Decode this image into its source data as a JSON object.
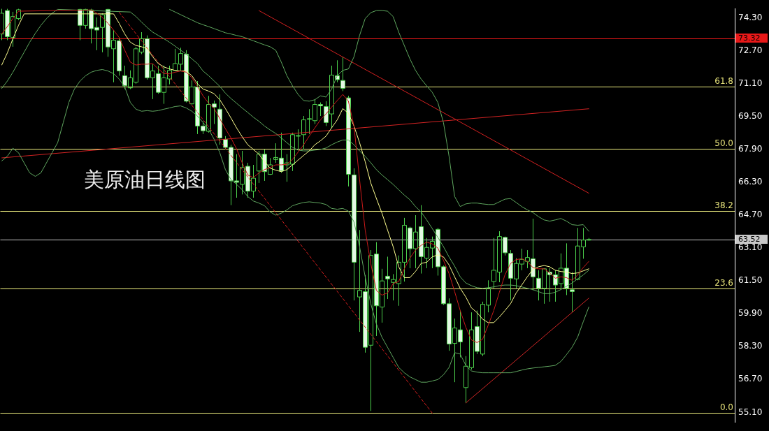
{
  "chart_data": {
    "type": "candlestick",
    "title": "美原油日线图",
    "categories": [
      null,
      null,
      null,
      null,
      null,
      null,
      null,
      null,
      null,
      null,
      null,
      null,
      null,
      null,
      null,
      null,
      null,
      null,
      null,
      null,
      null,
      null,
      null,
      null,
      null,
      null,
      null,
      null,
      null,
      null,
      null,
      null,
      null,
      null,
      null,
      null,
      null,
      null,
      null,
      null,
      null,
      null,
      null,
      null,
      null,
      null,
      null,
      null,
      null,
      null,
      null,
      null,
      null,
      null,
      null,
      null,
      null,
      null,
      null,
      null,
      null,
      null,
      null,
      null,
      null,
      null,
      null,
      null,
      null,
      null,
      null,
      null,
      null,
      null,
      null,
      null,
      null,
      null,
      null,
      null,
      null,
      null,
      null,
      null,
      null,
      null,
      null,
      null,
      null,
      null,
      null,
      null,
      null,
      null,
      null,
      null,
      null,
      null,
      null,
      null,
      null,
      null,
      null,
      null,
      null,
      null
    ],
    "color": "#4cd04c",
    "colors": [
      "#4cd04c",
      "#e4f8e4",
      "#4cd04c",
      "#4cd04c",
      null,
      null,
      null,
      null,
      null,
      null,
      null,
      null,
      null,
      null,
      "#e4f8e4",
      "#4cd04c",
      "#e4f8e4",
      "#e4f8e4",
      "#4cd04c",
      "#e4f8e4",
      "#4cd04c",
      "#e4f8e4",
      "#e4f8e4",
      "#4cd04c",
      "#4cd04c",
      "#4cd04c",
      "#e4f8e4",
      "#4cd04c",
      "#e4f8e4",
      "#4cd04c",
      "#4cd04c",
      "#4cd04c",
      "#4cd04c",
      "#e4f8e4",
      "#4cd04c",
      "#e4f8e4",
      "#e4f8e4",
      "#4cd04c",
      "#e4f8e4",
      "#e4f8e4",
      "#e4f8e4",
      "#e4f8e4",
      "#e4f8e4",
      "#4cd04c",
      "#e4f8e4",
      "#4cd04c",
      "#4cd04c",
      "#e4f8e4",
      "#4cd04c",
      "#4cd04c",
      "#e4f8e4",
      "#4cd04c",
      "#4cd04c",
      "#4cd04c",
      "#4cd04c",
      "#4cd04c",
      "#4cd04c",
      "#e4f8e4",
      "#e4f8e4",
      "#4cd04c",
      "#e4f8e4",
      "#e4f8e4",
      "#e4f8e4",
      "#e4f8e4",
      "#4cd04c",
      "#e4f8e4",
      "#4cd04c",
      "#e4f8e4",
      "#4cd04c",
      "#e4f8e4",
      "#4cd04c",
      "#4cd04c",
      "#4cd04c",
      "#e4f8e4",
      "#4cd04c",
      "#e4f8e4",
      "#4cd04c",
      "#4cd04c",
      "#e4f8e4",
      "#e4f8e4",
      "#e4f8e4",
      "#4cd04c",
      "#e4f8e4",
      "#4cd04c",
      "#4cd04c",
      "#e4f8e4",
      "#4cd04c",
      "#4cd04c",
      "#4cd04c",
      "#4cd04c",
      "#e4f8e4",
      "#e4f8e4",
      "#4cd04c",
      "#4cd04c",
      "#4cd04c",
      "#e4f8e4",
      "#e4f8e4",
      "#4cd04c",
      "#e4f8e4",
      "#e4f8e4",
      "#4cd04c",
      "#e4f8e4",
      "#e4f8e4",
      "#4cd04c",
      "#4cd04c",
      "#4cd04c"
    ],
    "ohlc": [
      [
        73.52,
        74.75,
        73.22,
        74.53
      ],
      [
        74.66,
        74.75,
        73.22,
        73.39
      ],
      [
        73.35,
        74.6,
        72.9,
        74.37
      ],
      [
        74.27,
        74.75,
        74.2,
        74.7
      ],
      null,
      null,
      null,
      null,
      null,
      null,
      null,
      null,
      null,
      null,
      [
        74.72,
        74.75,
        73.22,
        73.94
      ],
      [
        73.94,
        74.75,
        73.78,
        74.72
      ],
      [
        74.69,
        74.75,
        73.06,
        73.78
      ],
      [
        73.84,
        74.33,
        72.73,
        73.71
      ],
      [
        73.84,
        74.53,
        72.63,
        74.46
      ],
      [
        74.72,
        74.75,
        72.41,
        72.89
      ],
      [
        72.8,
        73.71,
        71.17,
        73.22
      ],
      [
        73.19,
        73.35,
        71.49,
        71.72
      ],
      [
        71.49,
        71.98,
        70.84,
        71.0
      ],
      [
        70.9,
        71.75,
        70.84,
        71.39
      ],
      [
        71.17,
        72.9,
        71.1,
        72.8
      ],
      [
        72.64,
        73.61,
        72.54,
        73.29
      ],
      [
        73.29,
        73.45,
        71.3,
        71.39
      ],
      [
        71.39,
        72.05,
        70.35,
        71.72
      ],
      [
        71.59,
        71.98,
        70.61,
        70.68
      ],
      [
        70.68,
        71.98,
        70.12,
        71.39
      ],
      [
        71.33,
        71.98,
        71.07,
        71.75
      ],
      [
        71.75,
        72.8,
        71.72,
        72.08
      ],
      [
        72.05,
        72.85,
        71.72,
        72.57
      ],
      [
        72.54,
        72.73,
        70.19,
        70.25
      ],
      [
        70.12,
        71.26,
        70.09,
        70.94
      ],
      [
        70.94,
        71.23,
        68.65,
        69.04
      ],
      [
        69.04,
        69.27,
        68.65,
        68.81
      ],
      [
        68.78,
        70.51,
        68.72,
        70.09
      ],
      [
        70.12,
        70.28,
        69.14,
        69.96
      ],
      [
        69.86,
        70.58,
        68.13,
        68.46
      ],
      [
        68.39,
        68.55,
        67.9,
        68.0
      ],
      [
        68.0,
        68.13,
        65.19,
        66.37
      ],
      [
        66.37,
        67.67,
        65.55,
        66.3
      ],
      [
        66.2,
        67.83,
        65.71,
        67.02
      ],
      [
        67.08,
        67.25,
        65.55,
        65.87
      ],
      [
        65.87,
        67.15,
        65.55,
        66.5
      ],
      [
        66.85,
        67.83,
        66.27,
        67.67
      ],
      [
        67.67,
        67.9,
        66.37,
        66.82
      ],
      [
        66.69,
        67.48,
        66.66,
        67.15
      ],
      [
        67.41,
        68.2,
        67.25,
        67.51
      ],
      [
        67.48,
        68.72,
        66.76,
        66.85
      ],
      [
        67.15,
        67.67,
        66.33,
        67.25
      ],
      [
        67.18,
        68.72,
        66.85,
        68.62
      ],
      [
        68.55,
        68.88,
        67.9,
        68.58
      ],
      [
        68.62,
        69.53,
        67.9,
        69.34
      ],
      [
        69.37,
        69.86,
        68.65,
        69.4
      ],
      [
        69.3,
        70.35,
        69.14,
        70.09
      ],
      [
        70.09,
        70.19,
        69.53,
        70.02
      ],
      [
        69.99,
        70.25,
        69.04,
        69.21
      ],
      [
        69.63,
        71.98,
        68.95,
        71.52
      ],
      [
        71.49,
        72.24,
        71.17,
        71.3
      ],
      [
        71.26,
        72.41,
        70.74,
        70.87
      ],
      [
        70.41,
        70.51,
        66.1,
        66.69
      ],
      [
        66.66,
        66.98,
        60.55,
        62.41
      ],
      [
        60.72,
        63.98,
        59.02,
        61.04
      ],
      [
        60.98,
        61.79,
        58.01,
        58.27
      ],
      [
        58.37,
        63.0,
        55.17,
        62.74
      ],
      [
        62.81,
        63.39,
        58.82,
        60.29
      ],
      [
        60.23,
        62.09,
        59.47,
        61.5
      ],
      [
        61.73,
        62.68,
        60.62,
        61.6
      ],
      [
        61.43,
        61.83,
        60.55,
        61.57
      ],
      [
        61.37,
        62.74,
        60.29,
        62.41
      ],
      [
        62.41,
        64.57,
        61.47,
        64.21
      ],
      [
        64.08,
        64.14,
        62.12,
        63.07
      ],
      [
        63.07,
        64.7,
        62.12,
        63.88
      ],
      [
        64.14,
        65.19,
        61.86,
        62.68
      ],
      [
        62.61,
        63.59,
        62.12,
        63.13
      ],
      [
        63.1,
        63.66,
        62.12,
        63.43
      ],
      [
        64.01,
        64.08,
        61.76,
        62.19
      ],
      [
        62.19,
        62.25,
        60.33,
        60.39
      ],
      [
        60.39,
        60.65,
        58.1,
        58.43
      ],
      [
        58.46,
        59.67,
        56.57,
        59.21
      ],
      [
        59.12,
        60.06,
        57.78,
        58.53
      ],
      [
        56.31,
        57.84,
        55.56,
        57.35
      ],
      [
        57.28,
        59.97,
        57.19,
        59.12
      ],
      [
        59.28,
        60.06,
        57.94,
        58.07
      ],
      [
        57.94,
        60.49,
        57.84,
        60.36
      ],
      [
        60.32,
        61.53,
        59.97,
        61.14
      ],
      [
        61.47,
        63.59,
        61.14,
        62.02
      ],
      [
        61.93,
        63.92,
        61.44,
        63.66
      ],
      [
        63.62,
        63.66,
        62.74,
        62.87
      ],
      [
        62.84,
        63.0,
        60.55,
        61.63
      ],
      [
        61.6,
        62.61,
        61.14,
        62.35
      ],
      [
        62.32,
        63.07,
        62.02,
        62.55
      ],
      [
        62.45,
        63.0,
        62.12,
        62.64
      ],
      [
        62.58,
        64.53,
        61.04,
        61.7
      ],
      [
        61.63,
        62.02,
        60.55,
        61.14
      ],
      [
        61.14,
        62.12,
        60.39,
        62.09
      ],
      [
        61.93,
        62.12,
        60.49,
        61.8
      ],
      [
        61.8,
        62.02,
        60.49,
        61.3
      ],
      [
        61.37,
        62.84,
        61.11,
        62.12
      ],
      [
        62.12,
        63.33,
        60.81,
        61.14
      ],
      [
        61.07,
        61.93,
        59.99,
        60.98
      ],
      [
        61.57,
        64.08,
        61.53,
        63.2
      ],
      [
        63.16,
        64.08,
        62.58,
        63.49
      ],
      [
        63.49,
        63.59,
        63.46,
        63.52
      ]
    ],
    "series": [
      {
        "type": "line",
        "color": "#cc1a1a",
        "values": [
          73.52,
          73.88,
          74.27,
          74.63,
          null,
          null,
          null,
          null,
          null,
          null,
          null,
          null,
          null,
          null,
          null,
          null,
          74.69,
          74.53,
          74.33,
          74.04,
          73.71,
          73.35,
          72.73,
          72.15,
          72.01,
          72.05,
          72.05,
          72.08,
          71.82,
          71.59,
          71.59,
          71.66,
          71.72,
          71.66,
          71.39,
          70.97,
          70.51,
          70.15,
          69.89,
          69.4,
          68.91,
          68.46,
          67.93,
          67.25,
          66.66,
          66.53,
          66.76,
          66.92,
          67.02,
          67.15,
          67.15,
          67.18,
          67.41,
          67.77,
          68.13,
          68.55,
          68.95,
          69.34,
          69.63,
          69.96,
          70.28,
          70.58,
          70.25,
          69.04,
          66.43,
          63.98,
          62.35,
          61.04,
          60.81,
          60.91,
          61.37,
          61.47,
          62.09,
          62.61,
          63.0,
          63.23,
          63.39,
          63.3,
          63.1,
          62.51,
          61.86,
          60.98,
          60.06,
          59.25,
          58.63,
          58.5,
          58.66,
          59.34,
          60.06,
          60.95,
          61.79,
          62.35,
          62.54,
          62.58,
          62.45,
          62.15,
          62.09,
          62.09,
          61.89,
          61.63,
          61.7,
          61.66,
          61.53,
          61.79,
          62.15,
          62.45
        ]
      },
      {
        "type": "line",
        "color": "#ffff90",
        "values": [
          72.01,
          72.6,
          73.29,
          73.94,
          74.5,
          null,
          null,
          null,
          null,
          null,
          null,
          null,
          null,
          null,
          null,
          null,
          null,
          null,
          null,
          null,
          74.5,
          74.04,
          73.52,
          73.12,
          72.96,
          72.9,
          72.8,
          72.41,
          72.08,
          71.92,
          71.82,
          71.75,
          71.72,
          71.72,
          71.49,
          71.1,
          70.84,
          70.74,
          70.61,
          70.32,
          69.89,
          69.43,
          68.95,
          68.52,
          68.13,
          67.9,
          67.67,
          67.31,
          66.99,
          66.89,
          66.82,
          66.92,
          67.15,
          67.38,
          67.61,
          67.83,
          68.13,
          68.32,
          68.55,
          68.95,
          69.34,
          69.89,
          69.66,
          69.04,
          68.23,
          67.31,
          66.27,
          65.52,
          64.8,
          63.98,
          63.17,
          62.19,
          61.66,
          61.66,
          61.96,
          62.35,
          62.41,
          62.67,
          62.77,
          62.67,
          62.28,
          61.7,
          61.14,
          60.72,
          60.19,
          59.96,
          59.64,
          59.47,
          59.47,
          59.74,
          60.06,
          60.39,
          60.91,
          61.3,
          61.7,
          62.06,
          62.19,
          62.25,
          62.19,
          62.02,
          61.96,
          61.93,
          61.86,
          61.89,
          61.99,
          62.09
        ]
      },
      {
        "type": "line",
        "color": "#5fa85f",
        "values": [
          null,
          null,
          null,
          null,
          null,
          null,
          null,
          null,
          null,
          null,
          null,
          null,
          null,
          null,
          null,
          null,
          null,
          null,
          null,
          null,
          null,
          null,
          null,
          null,
          null,
          null,
          null,
          null,
          null,
          null,
          74.72,
          74.59,
          74.46,
          74.33,
          74.2,
          74.07,
          73.97,
          73.88,
          73.78,
          73.68,
          73.58,
          73.52,
          73.45,
          73.39,
          73.29,
          73.19,
          73.09,
          72.99,
          72.9,
          72.73,
          72.15,
          71.49,
          71.0,
          70.58,
          70.28,
          70.25,
          70.32,
          70.51,
          70.45,
          70.84,
          71.49,
          71.75,
          71.82,
          72.41,
          73.45,
          74.27,
          74.56,
          74.66,
          74.66,
          74.63,
          74.37,
          73.61,
          72.96,
          72.31,
          71.75,
          71.33,
          71.0,
          70.68,
          70.19,
          69.21,
          67.57,
          65.61,
          65.12,
          65.25,
          65.29,
          65.29,
          65.25,
          65.22,
          65.22,
          65.35,
          65.48,
          65.51,
          65.32,
          65.12,
          64.96,
          64.83,
          64.63,
          64.47,
          64.41,
          64.47,
          64.54,
          64.41,
          64.24,
          64.21,
          64.24,
          63.92
        ]
      },
      {
        "type": "line",
        "color": "#5ea95e",
        "values": [
          70.87,
          71.23,
          71.66,
          72.15,
          72.63,
          73.12,
          73.55,
          73.94,
          74.27,
          74.53,
          74.72,
          null,
          null,
          null,
          null,
          null,
          null,
          null,
          null,
          null,
          null,
          null,
          null,
          74.59,
          74.37,
          74.1,
          73.84,
          73.61,
          73.45,
          73.29,
          73.12,
          72.93,
          72.73,
          72.54,
          72.31,
          72.08,
          71.72,
          71.49,
          71.23,
          70.97,
          70.64,
          70.38,
          70.15,
          69.92,
          69.7,
          69.47,
          69.27,
          69.04,
          68.85,
          68.68,
          68.46,
          68.23,
          68.0,
          67.87,
          67.83,
          67.83,
          67.87,
          67.9,
          67.97,
          68.13,
          68.26,
          68.36,
          68.36,
          68.13,
          67.83,
          67.57,
          67.25,
          66.92,
          66.66,
          66.43,
          66.2,
          65.94,
          65.68,
          65.45,
          65.12,
          64.86,
          64.47,
          64.05,
          63.62,
          63.17,
          62.67,
          62.22,
          61.7,
          61.4,
          61.27,
          61.17,
          61.14,
          61.17,
          61.21,
          61.27,
          61.3,
          61.3,
          61.27,
          61.21,
          61.14,
          61.08,
          60.98,
          60.88,
          60.88,
          60.95,
          61.08,
          61.24,
          61.4,
          61.6,
          61.79,
          62.02
        ]
      },
      {
        "type": "line",
        "color": "#60a760",
        "values": [
          67.34,
          67.57,
          67.96,
          67.74,
          67.25,
          66.76,
          66.59,
          66.76,
          67.25,
          67.74,
          68.23,
          69.21,
          70.19,
          70.84,
          71.23,
          71.49,
          71.66,
          71.75,
          71.79,
          71.72,
          71.59,
          71.33,
          70.94,
          70.19,
          69.86,
          69.76,
          69.79,
          69.76,
          69.79,
          69.86,
          69.92,
          69.99,
          70.02,
          69.92,
          69.76,
          69.53,
          69.21,
          68.88,
          68.39,
          67.74,
          66.92,
          66.43,
          66.2,
          65.94,
          65.61,
          65.39,
          65.29,
          65.16,
          64.86,
          64.7,
          64.8,
          64.96,
          65.16,
          65.25,
          65.32,
          65.35,
          65.32,
          65.29,
          65.22,
          65.03,
          64.99,
          65.03,
          64.9,
          64.37,
          63.17,
          61.7,
          60.39,
          59.41,
          58.76,
          58.27,
          57.78,
          57.29,
          57.03,
          56.83,
          56.7,
          56.57,
          56.57,
          56.63,
          56.7,
          56.93,
          57.29,
          58.01,
          57.94,
          57.39,
          57.12,
          57.06,
          57.03,
          57.03,
          57.03,
          57.03,
          57.03,
          57.03,
          57.09,
          57.16,
          57.22,
          57.26,
          57.29,
          57.32,
          57.35,
          57.39,
          57.58,
          57.91,
          58.27,
          58.76,
          59.51,
          60.23
        ]
      },
      {
        "type": "line",
        "color": "#d42020",
        "values": [
          null,
          null,
          null,
          null,
          null,
          null,
          null,
          null,
          null,
          null,
          null,
          null,
          null,
          null,
          null,
          null,
          null,
          null,
          null,
          null,
          null,
          null,
          null,
          null,
          null,
          null,
          null,
          null,
          null,
          null,
          null,
          null,
          null,
          null,
          null,
          null,
          null,
          null,
          null,
          null,
          null,
          null,
          null,
          null,
          null,
          null,
          74.66,
          null,
          null,
          null,
          null,
          null,
          null,
          null,
          null,
          null,
          null,
          null,
          null,
          null,
          null,
          null,
          null,
          null,
          null,
          null,
          null,
          null,
          null,
          null,
          null,
          null,
          null,
          null,
          null,
          null,
          null,
          null,
          null,
          null,
          null,
          null,
          null,
          null,
          null,
          null,
          null,
          null,
          null,
          null,
          null,
          null,
          null,
          null,
          null,
          null,
          null,
          null,
          null,
          null,
          null,
          null,
          null,
          null,
          null,
          65.77
        ]
      },
      {
        "type": "line",
        "color": "#d32323",
        "values": [
          67.49,
          null,
          null,
          null,
          null,
          null,
          null,
          null,
          null,
          null,
          null,
          null,
          null,
          null,
          null,
          null,
          null,
          null,
          null,
          null,
          null,
          null,
          null,
          null,
          null,
          null,
          null,
          null,
          null,
          null,
          null,
          null,
          null,
          null,
          null,
          null,
          null,
          null,
          null,
          null,
          null,
          null,
          null,
          null,
          null,
          null,
          null,
          null,
          null,
          null,
          null,
          null,
          null,
          null,
          null,
          null,
          null,
          null,
          null,
          null,
          null,
          null,
          null,
          null,
          null,
          null,
          null,
          null,
          null,
          null,
          null,
          null,
          null,
          null,
          null,
          null,
          null,
          null,
          null,
          null,
          null,
          null,
          null,
          null,
          null,
          null,
          null,
          null,
          null,
          null,
          null,
          null,
          null,
          null,
          null,
          null,
          null,
          null,
          null,
          null,
          null,
          null,
          null,
          null,
          null,
          69.88
        ]
      },
      {
        "type": "line",
        "color": "#d51e1e",
        "line_style": "dashed",
        "values": [
          null,
          null,
          null,
          null,
          null,
          null,
          null,
          null,
          null,
          null,
          null,
          null,
          null,
          null,
          null,
          null,
          null,
          null,
          null,
          null,
          null,
          74.58,
          null,
          null,
          null,
          null,
          null,
          null,
          null,
          null,
          null,
          null,
          null,
          null,
          null,
          null,
          null,
          null,
          null,
          null,
          null,
          null,
          null,
          null,
          null,
          null,
          null,
          null,
          null,
          null,
          null,
          null,
          null,
          null,
          null,
          null,
          null,
          null,
          null,
          null,
          null,
          null,
          null,
          null,
          null,
          null,
          null,
          null,
          null,
          null,
          null,
          null,
          null,
          null,
          null,
          null,
          null,
          55.07,
          null,
          null,
          null,
          null,
          null,
          null,
          null,
          null,
          null,
          null,
          null,
          null,
          null,
          null,
          null,
          null,
          null,
          null,
          null,
          null,
          null,
          null,
          null,
          null,
          null,
          null,
          null,
          null
        ]
      },
      {
        "type": "line",
        "color": "#d22626",
        "values": [
          null,
          null,
          null,
          null,
          null,
          null,
          null,
          null,
          null,
          null,
          null,
          null,
          null,
          null,
          null,
          null,
          null,
          null,
          null,
          null,
          null,
          null,
          null,
          null,
          null,
          null,
          null,
          null,
          null,
          null,
          null,
          null,
          null,
          null,
          null,
          null,
          null,
          null,
          null,
          null,
          null,
          null,
          null,
          null,
          null,
          null,
          null,
          null,
          null,
          null,
          null,
          null,
          null,
          null,
          null,
          null,
          null,
          null,
          null,
          null,
          null,
          null,
          null,
          null,
          null,
          null,
          null,
          null,
          null,
          null,
          null,
          null,
          null,
          null,
          null,
          null,
          null,
          null,
          null,
          null,
          null,
          null,
          null,
          55.56,
          null,
          null,
          null,
          null,
          null,
          null,
          null,
          null,
          null,
          null,
          null,
          null,
          null,
          null,
          null,
          null,
          null,
          null,
          null,
          null,
          null,
          60.66
        ]
      }
    ],
    "ref_lines": [
      {
        "axis": "y",
        "value": 73.32,
        "label": "73.32",
        "color": "#e81818"
      },
      {
        "axis": "y",
        "value": 70.96,
        "color": "#f0f080"
      },
      {
        "axis": "y",
        "value": 67.93,
        "color": "#f0f080"
      },
      {
        "axis": "y",
        "value": 64.9,
        "color": "#f0f080"
      },
      {
        "axis": "y",
        "value": 63.52,
        "label": "63.52",
        "color": "#c8c8c8"
      },
      {
        "axis": "y",
        "value": 61.14,
        "color": "#f0f080"
      },
      {
        "axis": "y",
        "value": 55.07,
        "color": "#f0f080"
      }
    ],
    "annotations": [
      {
        "text": "61.8",
        "y": 70.96
      },
      {
        "text": "50.0",
        "y": 67.93
      },
      {
        "text": "38.2",
        "y": 64.9
      },
      {
        "text": "23.6",
        "y": 61.14
      },
      {
        "text": "0.0",
        "y": 55.07
      }
    ],
    "ylim": [
      54.61,
      74.76
    ],
    "yticks": [
      {
        "value": 55.1,
        "label": "55.10"
      },
      {
        "value": 56.7,
        "label": "56.70"
      },
      {
        "value": 58.3,
        "label": "58.30"
      },
      {
        "value": 59.9,
        "label": "59.90"
      },
      {
        "value": 61.5,
        "label": "61.50"
      },
      {
        "value": 63.1,
        "label": "63.10"
      },
      {
        "value": 64.7,
        "label": "64.70"
      },
      {
        "value": 66.3,
        "label": "66.30"
      },
      {
        "value": 67.9,
        "label": "67.90"
      },
      {
        "value": 69.5,
        "label": "69.50"
      },
      {
        "value": 71.1,
        "label": "71.10"
      },
      {
        "value": 72.7,
        "label": "72.70"
      },
      {
        "value": 74.3,
        "label": "74.30"
      }
    ],
    "tick_labels": "y"
  }
}
